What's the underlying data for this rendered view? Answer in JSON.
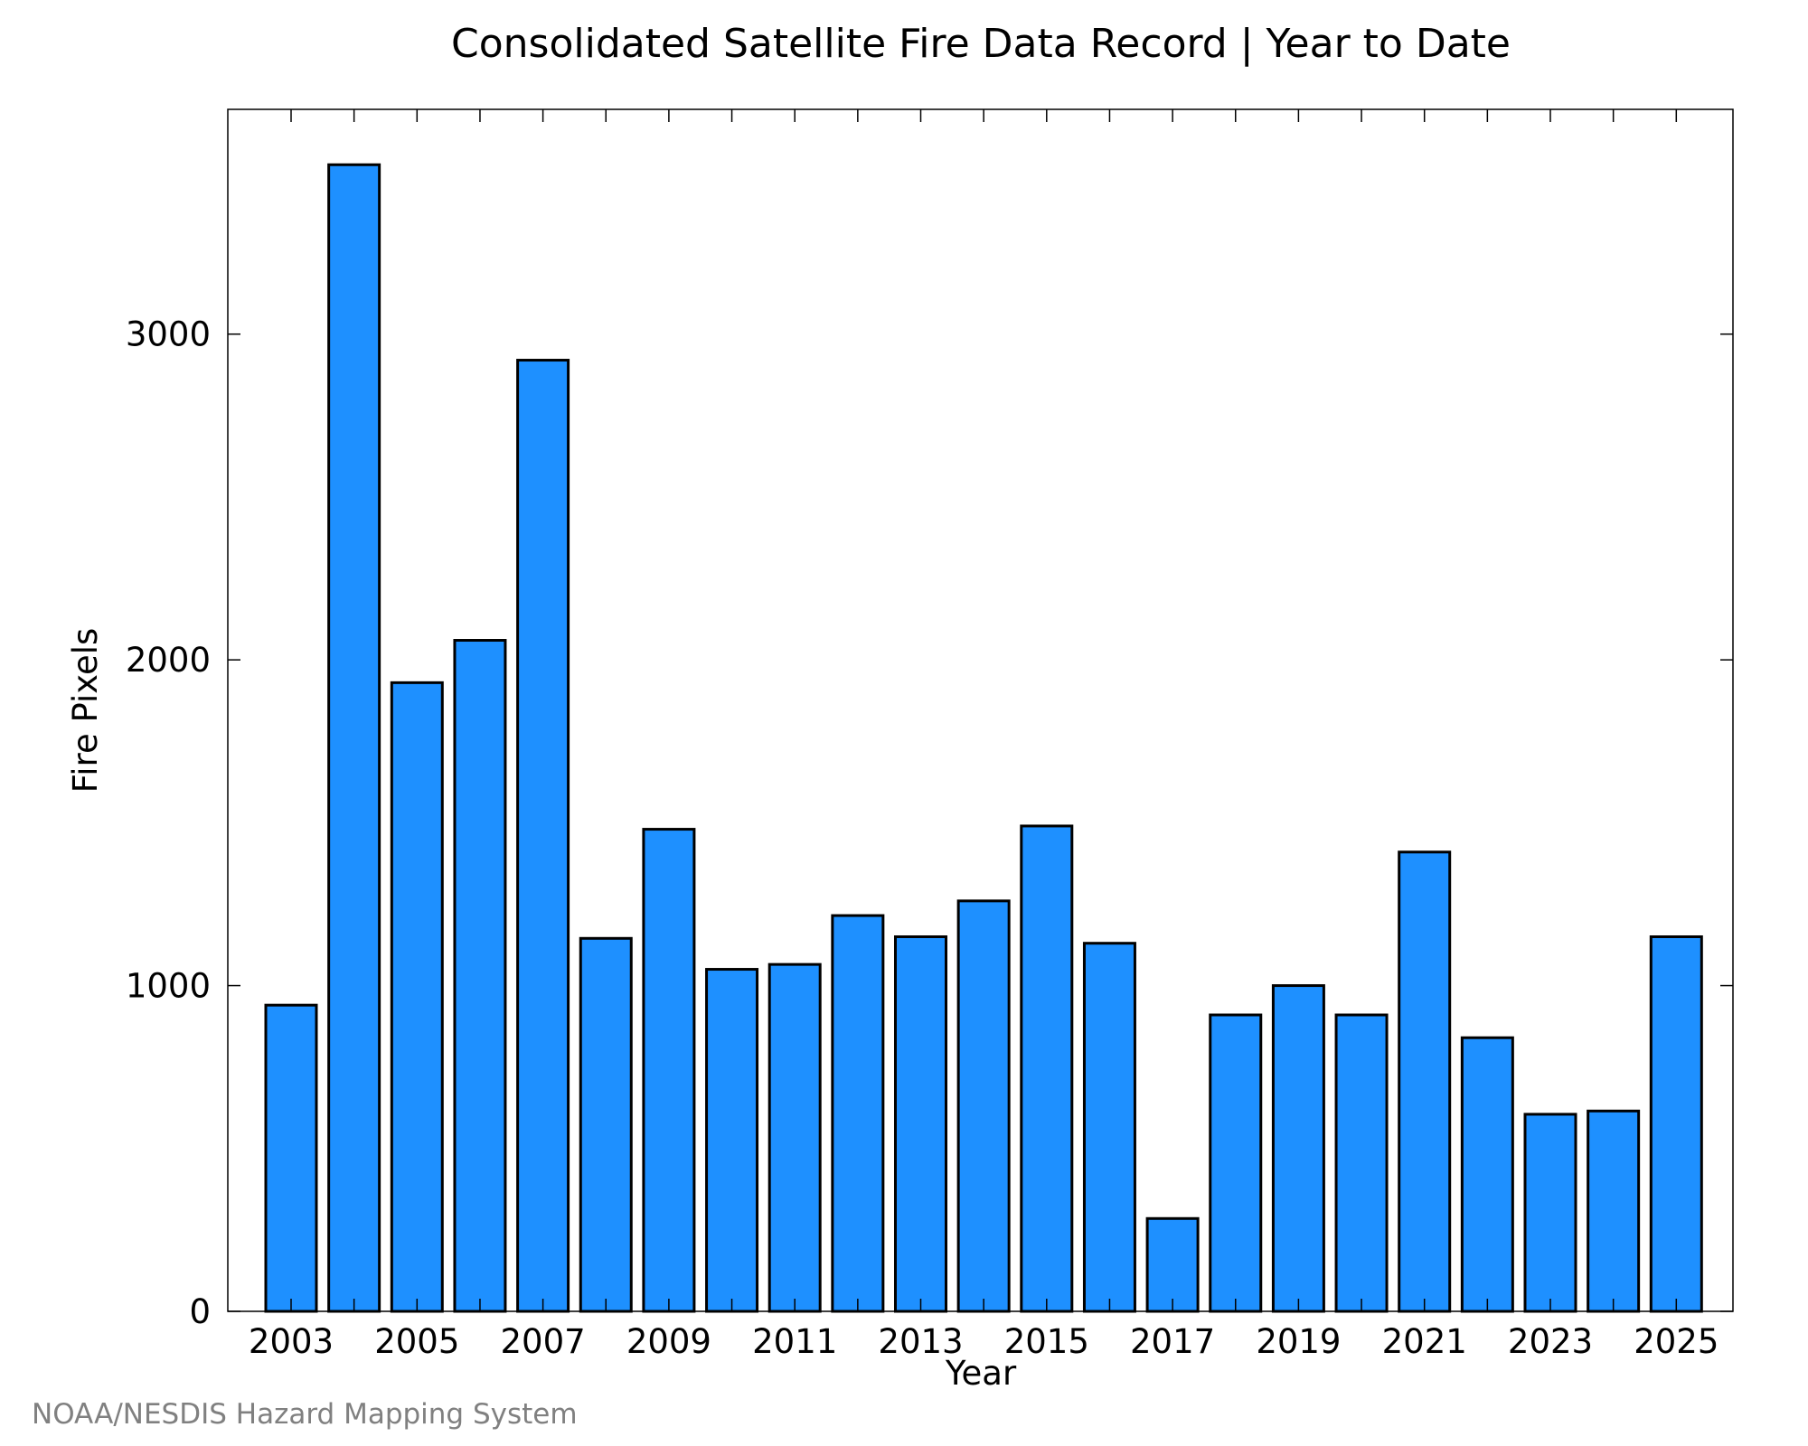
{
  "chart_data": {
    "type": "bar",
    "title": "Consolidated Satellite Fire Data Record | Year to Date",
    "xlabel": "Year",
    "ylabel": "Fire Pixels",
    "categories": [
      "2003",
      "2004",
      "2005",
      "2006",
      "2007",
      "2008",
      "2009",
      "2010",
      "2011",
      "2012",
      "2013",
      "2014",
      "2015",
      "2016",
      "2017",
      "2018",
      "2019",
      "2020",
      "2021",
      "2022",
      "2023",
      "2024",
      "2025"
    ],
    "values": [
      940,
      3520,
      1930,
      2060,
      2920,
      1145,
      1480,
      1050,
      1065,
      1215,
      1150,
      1260,
      1490,
      1130,
      285,
      910,
      1000,
      910,
      1410,
      840,
      605,
      615,
      1150
    ],
    "x_tick_labels": [
      "2003",
      "2005",
      "2007",
      "2009",
      "2011",
      "2013",
      "2015",
      "2017",
      "2019",
      "2021",
      "2023",
      "2025"
    ],
    "y_ticks": [
      0,
      1000,
      2000,
      3000
    ],
    "y_tick_labels": [
      "0",
      "1000",
      "2000",
      "3000"
    ],
    "ylim": [
      0,
      3690
    ],
    "grid": false,
    "bar_color": "#1e90ff",
    "bar_edge_color": "#000000",
    "credit": "NOAA/NESDIS Hazard Mapping System"
  }
}
